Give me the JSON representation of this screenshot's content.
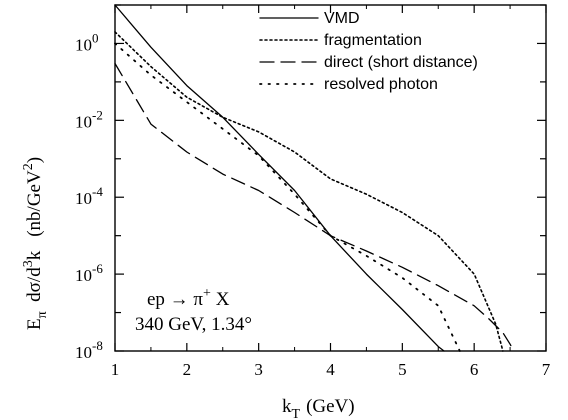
{
  "chart_data": {
    "type": "line",
    "xlabel": "k",
    "xlabel_sub": "T",
    "xlabel_unit": "(GeV)",
    "ylabel_parts": {
      "e": "E",
      "e_sub": "π",
      "rest": "  dσ/d",
      "pow": "3",
      "k": "k",
      "unit": "(nb/GeV",
      "unit_pow": "2",
      "unit_close": ")"
    },
    "xlim": [
      1,
      7
    ],
    "ylim": [
      1e-08,
      10
    ],
    "yscale": "log",
    "x_ticks": [
      "1",
      "2",
      "3",
      "4",
      "5",
      "6",
      "7"
    ],
    "y_ticks": [
      {
        "base": "10",
        "exp": "0"
      },
      {
        "base": "10",
        "exp": "-2"
      },
      {
        "base": "10",
        "exp": "-4"
      },
      {
        "base": "10",
        "exp": "-6"
      },
      {
        "base": "10",
        "exp": "-8"
      }
    ],
    "annotation": {
      "line1_a": "ep → π",
      "line1_sup": "+",
      "line1_b": " X",
      "line2": "340 GeV, 1.34°"
    },
    "legend_position": "top-right",
    "series": [
      {
        "name": "VMD",
        "style": "solid",
        "x": [
          1.0,
          1.5,
          2.0,
          2.5,
          3.0,
          3.5,
          4.0,
          4.5,
          5.0,
          5.5,
          5.58
        ],
        "y": [
          10,
          0.8,
          0.08,
          0.012,
          0.0013,
          0.00015,
          1e-05,
          1e-06,
          1.2e-07,
          1.3e-08,
          1e-08
        ]
      },
      {
        "name": "fragmentation",
        "style": "dotted",
        "x": [
          1.0,
          1.5,
          2.0,
          2.5,
          3.0,
          3.5,
          4.0,
          4.5,
          5.0,
          5.5,
          6.0,
          6.3,
          6.4
        ],
        "y": [
          2,
          0.25,
          0.04,
          0.012,
          0.005,
          0.0015,
          0.0003,
          0.00012,
          4e-05,
          1e-05,
          1e-06,
          5e-08,
          1e-08
        ]
      },
      {
        "name": "direct (short distance)",
        "style": "dashed",
        "x": [
          1.0,
          1.5,
          2.0,
          2.5,
          3.0,
          3.5,
          4.0,
          4.5,
          5.0,
          5.5,
          6.0,
          6.2,
          6.4,
          6.5,
          6.55
        ],
        "y": [
          0.3,
          0.008,
          0.0015,
          0.0004,
          0.00015,
          4e-05,
          1e-05,
          4e-06,
          1.5e-06,
          5e-07,
          1.5e-07,
          7e-08,
          3e-08,
          1.5e-08,
          1e-08
        ]
      },
      {
        "name": "resolved photon",
        "style": "dash-dot",
        "x": [
          1.0,
          1.5,
          2.0,
          2.5,
          3.0,
          3.5,
          4.0,
          4.5,
          5.0,
          5.5,
          5.8
        ],
        "y": [
          1.0,
          0.15,
          0.03,
          0.006,
          0.0012,
          0.00012,
          1e-05,
          3e-06,
          8e-07,
          1.5e-07,
          1e-08
        ]
      }
    ]
  }
}
